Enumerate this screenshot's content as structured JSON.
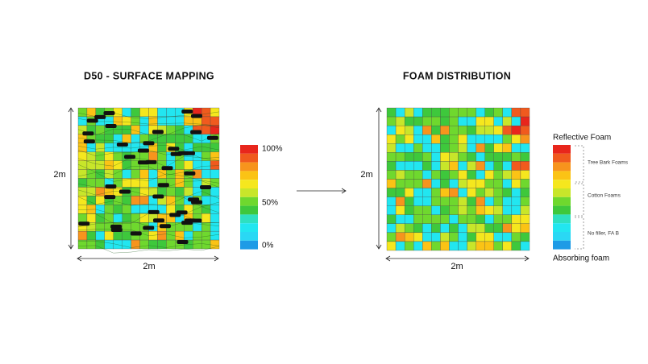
{
  "left_panel": {
    "title": "D50 - SURFACE MAPPING",
    "side_label": "2m",
    "bottom_label": "2m",
    "legend": [
      "100%",
      "50%",
      "0%"
    ]
  },
  "right_panel": {
    "title": "FOAM DISTRIBUTION",
    "side_label": "2m",
    "bottom_label": "2m",
    "legend_top": "Reflective Foam",
    "legend_bottom": "Absorbing foam",
    "groups": [
      "Tree Bark Foams",
      "Cotton Foams",
      "No filler, FA B"
    ]
  }
}
